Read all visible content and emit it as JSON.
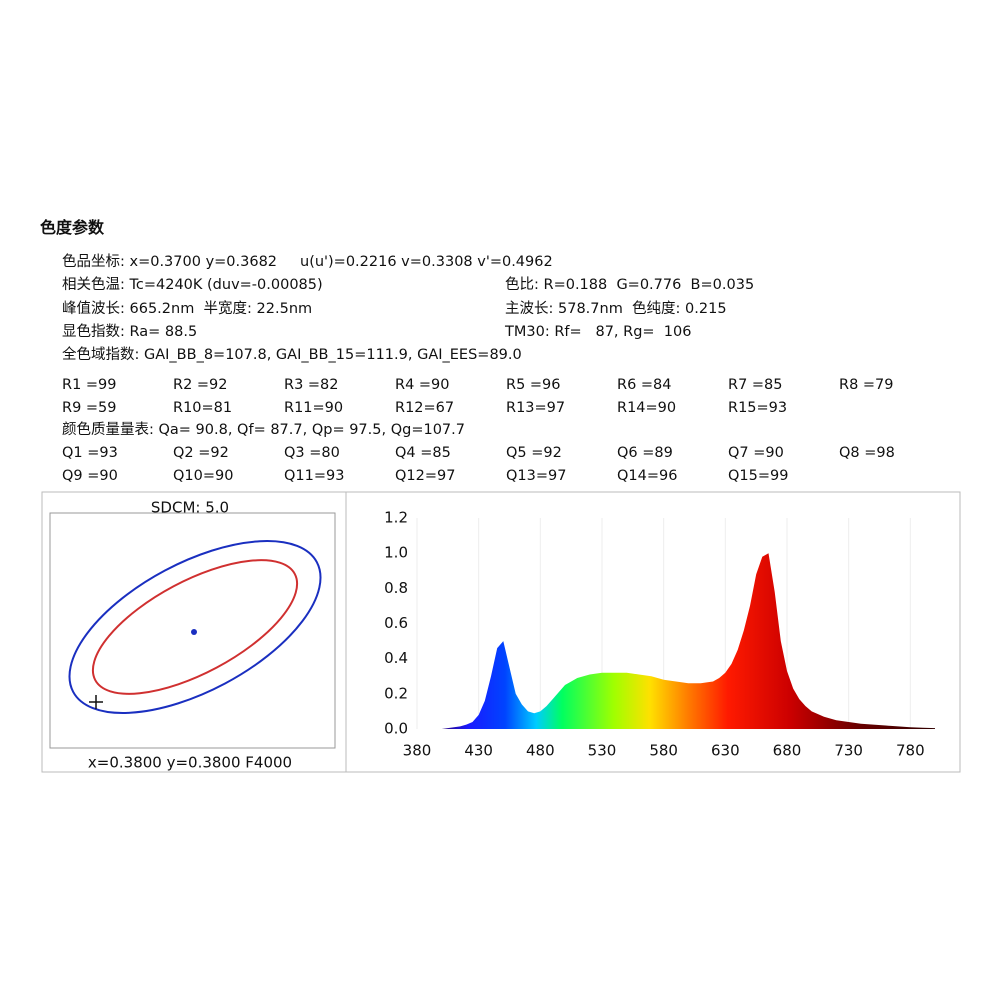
{
  "header": {
    "title": "色度参数"
  },
  "params": {
    "rows": [
      [
        "色品坐标: x=0.3700 y=0.3682",
        "u(u')=0.2216 v=0.3308 v'=0.4962",
        null
      ],
      [
        "相关色温: Tc=4240K (duv=-0.00085)",
        null,
        "色比: R=0.188  G=0.776  B=0.035"
      ],
      [
        "峰值波长: 665.2nm  半宽度: 22.5nm",
        null,
        "主波长: 578.7nm  色纯度: 0.215"
      ],
      [
        "显色指数: Ra= 88.5",
        null,
        "TM30: Rf=   87, Rg=  106"
      ],
      [
        "全色域指数: GAI_BB_8=107.8, GAI_BB_15=111.9, GAI_EES=89.0",
        null,
        null
      ]
    ],
    "r_rows": [
      [
        "R1 =99",
        "R2 =92",
        "R3 =82",
        "R4 =90",
        "R5 =96",
        "R6 =84",
        "R7 =85",
        "R8 =79"
      ],
      [
        "R9 =59",
        "R10=81",
        "R11=90",
        "R12=67",
        "R13=97",
        "R14=90",
        "R15=93"
      ]
    ],
    "quality": "颜色质量量表: Qa= 90.8, Qf= 87.7, Qp= 97.5, Qg=107.7",
    "q_rows": [
      [
        "Q1 =93",
        "Q2 =92",
        "Q3 =80",
        "Q4 =85",
        "Q5 =92",
        "Q6 =89",
        "Q7 =90",
        "Q8 =98"
      ],
      [
        "Q9 =90",
        "Q10=90",
        "Q11=93",
        "Q12=97",
        "Q13=97",
        "Q14=96",
        "Q15=99"
      ]
    ]
  },
  "sdcm": {
    "label": "SDCM:  5.0",
    "caption": "x=0.3800 y=0.3800 F4000"
  },
  "chart_data": {
    "type": "area",
    "x": [
      400,
      405,
      410,
      415,
      420,
      425,
      430,
      435,
      440,
      445,
      450,
      455,
      460,
      465,
      470,
      475,
      480,
      485,
      490,
      495,
      500,
      505,
      510,
      515,
      520,
      525,
      530,
      535,
      540,
      545,
      550,
      555,
      560,
      565,
      570,
      575,
      580,
      585,
      590,
      595,
      600,
      605,
      610,
      615,
      620,
      625,
      630,
      635,
      640,
      645,
      650,
      655,
      660,
      665,
      670,
      675,
      680,
      685,
      690,
      695,
      700,
      710,
      720,
      730,
      740,
      750,
      760,
      770,
      780,
      790,
      800
    ],
    "values": [
      0,
      0.005,
      0.01,
      0.015,
      0.025,
      0.04,
      0.08,
      0.16,
      0.3,
      0.46,
      0.5,
      0.35,
      0.2,
      0.14,
      0.1,
      0.09,
      0.1,
      0.13,
      0.17,
      0.21,
      0.25,
      0.27,
      0.29,
      0.3,
      0.31,
      0.315,
      0.32,
      0.32,
      0.32,
      0.32,
      0.32,
      0.315,
      0.31,
      0.305,
      0.3,
      0.29,
      0.28,
      0.275,
      0.27,
      0.265,
      0.26,
      0.26,
      0.26,
      0.265,
      0.27,
      0.29,
      0.32,
      0.37,
      0.45,
      0.56,
      0.7,
      0.88,
      0.98,
      1.0,
      0.78,
      0.5,
      0.33,
      0.23,
      0.17,
      0.13,
      0.1,
      0.07,
      0.05,
      0.04,
      0.03,
      0.025,
      0.02,
      0.015,
      0.01,
      0.007,
      0.005
    ],
    "xlim": [
      380,
      800
    ],
    "xticks": [
      380,
      430,
      480,
      530,
      580,
      630,
      680,
      730,
      780
    ],
    "ylim": [
      0,
      1.2
    ],
    "yticks": [
      {
        "value": 0,
        "label": "0.0"
      },
      0.2,
      0.4,
      0.6,
      0.8,
      {
        "value": 1,
        "label": "1.0"
      },
      1.2
    ],
    "grid": true
  }
}
